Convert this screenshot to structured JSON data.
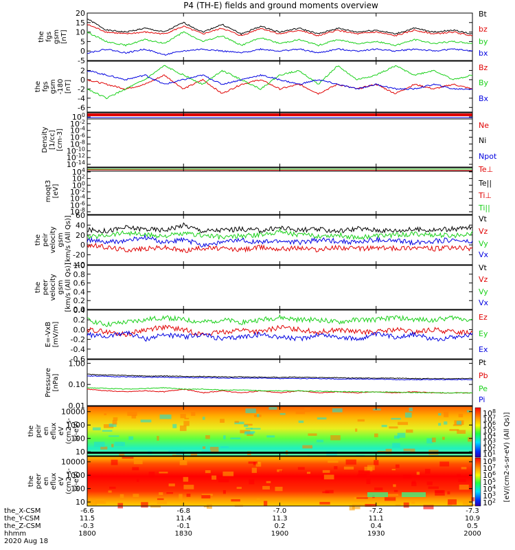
{
  "title": "P4 (TH-E) fields and ground moments overview",
  "colors": {
    "black": "#000000",
    "red": "#e00000",
    "green": "#18d018",
    "blue": "#0000e0"
  },
  "chart_data": [
    {
      "type": "line",
      "ylabel": [
        "the",
        "fgs",
        "gsm",
        "[nT]"
      ],
      "ylim": [
        -5,
        20
      ],
      "ticks": [
        "20",
        "15",
        "10",
        "5",
        "0",
        "-5"
      ],
      "tick_vals": [
        20,
        15,
        10,
        5,
        0,
        -5
      ],
      "legend": [
        {
          "label": "Bt",
          "color": "black"
        },
        {
          "label": "bz",
          "color": "red"
        },
        {
          "label": "by",
          "color": "green"
        },
        {
          "label": "bx",
          "color": "blue"
        }
      ],
      "series": [
        {
          "name": "Bt",
          "color": "black",
          "values": [
            17,
            11,
            10,
            12,
            10,
            15,
            10,
            14,
            9,
            13,
            10,
            12,
            9,
            12,
            10,
            11,
            9,
            12,
            10,
            11,
            9
          ]
        },
        {
          "name": "bz",
          "color": "red",
          "values": [
            14,
            10,
            9,
            10,
            9,
            13,
            9,
            12,
            8,
            12,
            9,
            11,
            8,
            11,
            9,
            10,
            8,
            11,
            9,
            10,
            8
          ]
        },
        {
          "name": "by",
          "color": "green",
          "values": [
            10,
            5,
            3,
            6,
            4,
            10,
            5,
            8,
            3,
            7,
            4,
            6,
            3,
            6,
            4,
            5,
            3,
            6,
            4,
            5,
            4
          ]
        },
        {
          "name": "bx",
          "color": "blue",
          "values": [
            -1,
            1,
            -1,
            1,
            -2,
            0,
            1,
            0,
            -1,
            1,
            0,
            1,
            -1,
            1,
            0,
            1,
            0,
            1,
            0,
            1,
            0
          ]
        }
      ]
    },
    {
      "type": "line",
      "ylabel": [
        "the",
        "fgs",
        "gsm",
        "-180",
        "[nT]"
      ],
      "ylim": [
        -7,
        4
      ],
      "ticks": [
        "2",
        "0",
        "-2",
        "-4",
        "-6"
      ],
      "tick_vals": [
        2,
        0,
        -2,
        -4,
        -6
      ],
      "legend": [
        {
          "label": "Bz",
          "color": "red"
        },
        {
          "label": "By",
          "color": "green"
        },
        {
          "label": "Bx",
          "color": "blue"
        }
      ],
      "series": [
        {
          "name": "Bz",
          "color": "red",
          "values": [
            0,
            -1,
            -2,
            -1,
            1,
            -2,
            0,
            -3,
            -1,
            0,
            -2,
            -1,
            -3,
            -1,
            -2,
            -1,
            -3,
            -1,
            -2,
            -1,
            -2
          ]
        },
        {
          "name": "By",
          "color": "green",
          "values": [
            -2,
            -4,
            -2,
            0,
            3,
            1,
            -1,
            2,
            0,
            -2,
            1,
            2,
            -1,
            3,
            0,
            1,
            3,
            1,
            2,
            0,
            1
          ]
        },
        {
          "name": "Bx",
          "color": "blue",
          "values": [
            2,
            1,
            0,
            1,
            -1,
            0,
            1,
            -1,
            0,
            1,
            0,
            -1,
            0,
            -1,
            -2,
            -1,
            -2,
            -2,
            -1,
            -2,
            -2
          ]
        }
      ]
    },
    {
      "type": "line",
      "ylabel": [
        "Density",
        "[1/cc]",
        "[cm-3]"
      ],
      "log": true,
      "ticks": [
        "10^0",
        "10^-2",
        "10^-4",
        "10^-6",
        "10^-8",
        "10^-10",
        "10^-12",
        "10^-14"
      ],
      "legend": [
        {
          "label": "Ne",
          "color": "red"
        },
        {
          "label": "Ni",
          "color": "black"
        },
        {
          "label": "Npot",
          "color": "blue"
        }
      ]
    },
    {
      "type": "line",
      "ylabel": [
        "moqt3",
        "[eV]"
      ],
      "log": true,
      "ticks": [
        "10^4",
        "10^2",
        "10^0",
        "10^-2",
        "10^-4",
        "10^-6",
        "10^-8"
      ],
      "legend": [
        {
          "label": "Te⊥",
          "color": "red"
        },
        {
          "label": "Te||",
          "color": "black"
        },
        {
          "label": "Ti⊥",
          "color": "red"
        },
        {
          "label": "Ti||",
          "color": "green"
        }
      ]
    },
    {
      "type": "line",
      "ylabel": [
        "the",
        "peir",
        "velocity",
        "gsm",
        "[km/s (All Qs)]"
      ],
      "ylim": [
        -40,
        60
      ],
      "ticks": [
        "60",
        "40",
        "20",
        "0",
        "-20",
        "-40"
      ],
      "tick_vals": [
        60,
        40,
        20,
        0,
        -20,
        -40
      ],
      "legend": [
        {
          "label": "Vt",
          "color": "black"
        },
        {
          "label": "Vz",
          "color": "red"
        },
        {
          "label": "Vy",
          "color": "green"
        },
        {
          "label": "Vx",
          "color": "blue"
        }
      ],
      "series": [
        {
          "name": "Vt",
          "color": "black",
          "values": [
            30,
            28,
            35,
            32,
            30,
            40,
            28,
            30,
            32,
            29,
            35,
            30,
            31,
            28,
            33,
            30,
            29,
            31,
            30,
            32,
            35
          ]
        },
        {
          "name": "Vz",
          "color": "red",
          "values": [
            0,
            -5,
            -10,
            -8,
            -5,
            -12,
            -6,
            -8,
            -10,
            -5,
            -8,
            -6,
            -10,
            -5,
            -8,
            -6,
            -7,
            -5,
            -8,
            -6,
            -7
          ]
        },
        {
          "name": "Vy",
          "color": "green",
          "values": [
            15,
            20,
            25,
            20,
            18,
            22,
            20,
            15,
            18,
            20,
            28,
            20,
            18,
            20,
            15,
            18,
            20,
            22,
            20,
            18,
            25
          ]
        },
        {
          "name": "Vx",
          "color": "blue",
          "values": [
            10,
            5,
            8,
            15,
            5,
            10,
            0,
            5,
            10,
            5,
            8,
            5,
            10,
            8,
            5,
            10,
            8,
            5,
            8,
            10,
            5
          ]
        }
      ]
    },
    {
      "type": "line",
      "ylabel": [
        "the",
        "peer",
        "velocity",
        "gsm",
        "[km/s (All Qs)]"
      ],
      "ylim": [
        0,
        1
      ],
      "ticks": [
        "1.0",
        "0.8",
        "0.6",
        "0.4",
        "0.2",
        "0.0"
      ],
      "tick_vals": [
        1,
        0.8,
        0.6,
        0.4,
        0.2,
        0
      ],
      "legend": [
        {
          "label": "Vt",
          "color": "black"
        },
        {
          "label": "Vz",
          "color": "red"
        },
        {
          "label": "Vy",
          "color": "green"
        },
        {
          "label": "Vx",
          "color": "blue"
        }
      ]
    },
    {
      "type": "line",
      "ylabel": [
        "E=-VxB",
        "[mV/m]"
      ],
      "ylim": [
        -0.6,
        0.4
      ],
      "ticks": [
        "0.4",
        "0.2",
        "0.0",
        "-0.2",
        "-0.4",
        "-0.6"
      ],
      "tick_vals": [
        0.4,
        0.2,
        0,
        -0.2,
        -0.4,
        -0.6
      ],
      "legend": [
        {
          "label": "Ez",
          "color": "red"
        },
        {
          "label": "Ey",
          "color": "green"
        },
        {
          "label": "Ex",
          "color": "blue"
        }
      ],
      "series": [
        {
          "name": "Ez",
          "color": "red",
          "values": [
            0,
            -0.05,
            -0.1,
            0,
            0.05,
            0,
            -0.1,
            -0.05,
            0,
            -0.05,
            0.05,
            0,
            -0.05,
            0,
            -0.05,
            -0.05,
            0,
            -0.05,
            0,
            -0.05,
            -0.05
          ]
        },
        {
          "name": "Ey",
          "color": "green",
          "values": [
            0.2,
            0.1,
            0.15,
            0.2,
            0.25,
            0.2,
            0.15,
            0.2,
            0.15,
            0.2,
            0.25,
            0.2,
            0.2,
            0.15,
            0.2,
            0.2,
            0.25,
            0.2,
            0.2,
            0.25,
            0.2
          ]
        },
        {
          "name": "Ex",
          "color": "blue",
          "values": [
            -0.1,
            -0.15,
            -0.05,
            -0.2,
            -0.1,
            -0.15,
            -0.1,
            -0.2,
            -0.15,
            -0.1,
            -0.15,
            -0.2,
            -0.1,
            -0.15,
            -0.2,
            -0.1,
            -0.15,
            -0.1,
            -0.2,
            -0.15,
            -0.1
          ]
        }
      ]
    },
    {
      "type": "line",
      "ylabel": [
        "Pressure",
        "[nPa]"
      ],
      "log": true,
      "ylim": [
        0.01,
        1.5
      ],
      "ticks": [
        "1.00",
        "0.10",
        "0.01"
      ],
      "tick_vals": [
        1,
        0.1,
        0.01
      ],
      "legend": [
        {
          "label": "Pt",
          "color": "black"
        },
        {
          "label": "Pb",
          "color": "red"
        },
        {
          "label": "Pe",
          "color": "green"
        },
        {
          "label": "Pi",
          "color": "blue"
        }
      ],
      "series": [
        {
          "name": "Pt",
          "color": "black",
          "values": [
            0.3,
            0.28,
            0.27,
            0.25,
            0.25,
            0.24,
            0.24,
            0.23,
            0.23,
            0.22,
            0.22,
            0.22,
            0.21,
            0.21,
            0.2,
            0.2,
            0.2,
            0.19,
            0.19,
            0.19,
            0.19
          ]
        },
        {
          "name": "Pb",
          "color": "red",
          "values": [
            0.06,
            0.05,
            0.045,
            0.05,
            0.045,
            0.06,
            0.04,
            0.05,
            0.04,
            0.05,
            0.04,
            0.05,
            0.04,
            0.045,
            0.04,
            0.045,
            0.04,
            0.045,
            0.04,
            0.04,
            0.04
          ]
        },
        {
          "name": "Pe",
          "color": "green",
          "values": [
            0.07,
            0.065,
            0.06,
            0.065,
            0.07,
            0.06,
            0.06,
            0.055,
            0.055,
            0.05,
            0.05,
            0.05,
            0.048,
            0.046,
            0.045,
            0.044,
            0.043,
            0.042,
            0.041,
            0.04,
            0.04
          ]
        },
        {
          "name": "Pi",
          "color": "blue",
          "values": [
            0.25,
            0.24,
            0.23,
            0.22,
            0.22,
            0.21,
            0.21,
            0.2,
            0.2,
            0.2,
            0.19,
            0.19,
            0.19,
            0.18,
            0.18,
            0.18,
            0.17,
            0.17,
            0.17,
            0.17,
            0.17
          ]
        }
      ]
    },
    {
      "type": "heatmap",
      "ylabel": [
        "the",
        "peir",
        "en",
        "eflux",
        "eV",
        "(cm2-s-",
        "sr-eV)"
      ],
      "log": true,
      "ticks": [
        "10000",
        "1000",
        "100",
        "10"
      ],
      "tick_vals": [
        10000,
        1000,
        100,
        10
      ],
      "ylim": [
        5,
        25000
      ]
    },
    {
      "type": "heatmap",
      "ylabel": [
        "the",
        "peer",
        "en",
        "eflux",
        "eV",
        "(cm2-s-",
        "sr-eV)"
      ],
      "log": true,
      "ticks": [
        "10000",
        "1000",
        "100",
        "10"
      ],
      "tick_vals": [
        10000,
        1000,
        100,
        10
      ],
      "ylim": [
        5,
        25000
      ]
    }
  ],
  "colorbar": {
    "label": "[eV/(cm2-s-sr-eV) (All Qs)]",
    "ticks_top": [
      "10^8",
      "10^7",
      "10^6",
      "10^5",
      "10^4",
      "10^3",
      "10^2",
      "10^1"
    ],
    "ticks_bottom": [
      "10^8",
      "10^7",
      "10^6",
      "10^5",
      "10^4",
      "10^3",
      "10^2"
    ]
  },
  "x_axis": {
    "row_labels": [
      "the_X-CSM",
      "the_Y-CSM",
      "the_Z-CSM",
      "hhmm",
      "2020 Aug 18"
    ],
    "ticks": [
      {
        "vals": [
          "-6.6",
          "11.5",
          "-0.3",
          "1800"
        ]
      },
      {
        "vals": [
          "-6.8",
          "11.4",
          "-0.1",
          "1830"
        ]
      },
      {
        "vals": [
          "-7.0",
          "11.3",
          "0.2",
          "1900"
        ]
      },
      {
        "vals": [
          "-7.2",
          "11.1",
          "0.4",
          "1930"
        ]
      },
      {
        "vals": [
          "-7.3",
          "10.9",
          "0.5",
          "2000"
        ]
      }
    ]
  }
}
